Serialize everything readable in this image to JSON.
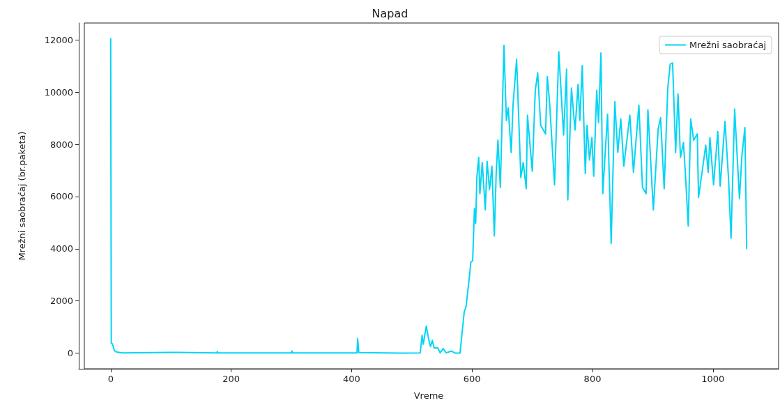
{
  "chart_data": {
    "type": "line",
    "title": "Napad",
    "xlabel": "Vreme",
    "ylabel": "Mrežni saobraćaj (br.paketa)",
    "xlim": [
      -53,
      1109
    ],
    "xticks": [
      0,
      200,
      400,
      600,
      800,
      1000
    ],
    "ylim": [
      -600,
      12650
    ],
    "yticks": [
      0,
      2000,
      4000,
      6000,
      8000,
      10000,
      12000
    ],
    "grid": false,
    "legend": "top right",
    "marker": "none",
    "line_style": "solid",
    "series": [
      {
        "name": "Mrežni saobraćaj",
        "color": "#00d5f5",
        "x": [
          0,
          1,
          3,
          6,
          10,
          20,
          100,
          176,
          177,
          178,
          300,
          301,
          302,
          409,
          410,
          412,
          480,
          514,
          517,
          519,
          524,
          528,
          531,
          534,
          537,
          543,
          547,
          552,
          557,
          566,
          572,
          580,
          587,
          590,
          596,
          598,
          601,
          604,
          606,
          608,
          611,
          613,
          617,
          622,
          625,
          629,
          633,
          637,
          640,
          643,
          647,
          653,
          657,
          660,
          665,
          668,
          674,
          681,
          685,
          690,
          692,
          700,
          705,
          709,
          714,
          722,
          725,
          729,
          737,
          744,
          752,
          757,
          759,
          765,
          771,
          776,
          779,
          783,
          788,
          791,
          795,
          799,
          802,
          807,
          810,
          814,
          817,
          825,
          828,
          831,
          837,
          842,
          847,
          852,
          862,
          868,
          877,
          883,
          889,
          892,
          901,
          909,
          913,
          919,
          925,
          929,
          933,
          938,
          942,
          946,
          951,
          954,
          959,
          963,
          968,
          974,
          976,
          983,
          988,
          992,
          995,
          1001,
          1008,
          1012,
          1020,
          1026,
          1030,
          1036,
          1044,
          1048,
          1053,
          1056
        ],
        "values": [
          12050,
          380,
          350,
          100,
          40,
          10,
          30,
          10,
          60,
          10,
          10,
          80,
          10,
          10,
          560,
          20,
          0,
          10,
          680,
          340,
          1030,
          530,
          250,
          490,
          200,
          200,
          10,
          170,
          10,
          80,
          0,
          0,
          1580,
          1770,
          3010,
          3490,
          3540,
          5540,
          4970,
          6730,
          7500,
          6110,
          7300,
          5490,
          7350,
          6260,
          7160,
          4490,
          6830,
          8160,
          6350,
          11790,
          8920,
          9400,
          7690,
          9500,
          11260,
          6730,
          7300,
          6300,
          9120,
          6970,
          10070,
          10740,
          8730,
          8400,
          10600,
          9500,
          6450,
          11550,
          8360,
          10880,
          5870,
          10160,
          8550,
          10300,
          8920,
          11020,
          6880,
          8730,
          7400,
          8260,
          6780,
          10070,
          8830,
          11500,
          6110,
          9160,
          6690,
          4200,
          9640,
          7690,
          8970,
          7160,
          9120,
          6930,
          9500,
          6350,
          6110,
          9320,
          5490,
          8590,
          9020,
          6300,
          10160,
          11070,
          11120,
          7690,
          9930,
          7500,
          8070,
          6970,
          4870,
          8970,
          8160,
          8400,
          5970,
          7110,
          7970,
          6930,
          8260,
          6450,
          8490,
          6400,
          8880,
          6640,
          4400,
          9350,
          5920,
          7540,
          8640,
          4010
        ]
      }
    ]
  }
}
